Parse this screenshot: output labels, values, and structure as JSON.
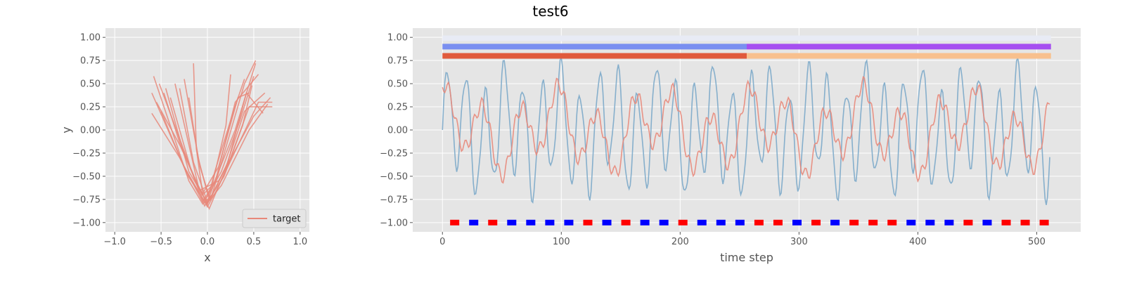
{
  "figure": {
    "suptitle": "test6"
  },
  "chart_data": [
    {
      "type": "line",
      "panel": "left",
      "xlabel": "x",
      "ylabel": "y",
      "xlim": [
        -1.1,
        1.1
      ],
      "ylim": [
        -1.1,
        1.1
      ],
      "xticks": [
        -1.0,
        -0.5,
        0.0,
        0.5,
        1.0
      ],
      "yticks": [
        -1.0,
        -0.75,
        -0.5,
        -0.25,
        0.0,
        0.25,
        0.5,
        0.75,
        1.0
      ],
      "xtick_labels": [
        "−1.0",
        "−0.5",
        "0.0",
        "0.5",
        "1.0"
      ],
      "ytick_labels": [
        "−1.00",
        "−0.75",
        "−0.50",
        "−0.25",
        "0.00",
        "0.25",
        "0.50",
        "0.75",
        "1.00"
      ],
      "grid": true,
      "legend": {
        "placement": "lower-right",
        "entries": [
          "target"
        ]
      },
      "series": [
        {
          "name": "target",
          "color": "#e8887a",
          "strokes": [
            [
              [
                -0.58,
                0.58
              ],
              [
                -0.2,
                -0.55
              ],
              [
                -0.05,
                -0.8
              ],
              [
                0.05,
                -0.7
              ],
              [
                0.4,
                0.5
              ],
              [
                0.52,
                0.75
              ]
            ],
            [
              [
                -0.6,
                0.4
              ],
              [
                -0.25,
                -0.4
              ],
              [
                0.0,
                -0.83
              ],
              [
                0.1,
                -0.65
              ],
              [
                0.55,
                0.3
              ],
              [
                0.7,
                0.3
              ]
            ],
            [
              [
                -0.6,
                0.18
              ],
              [
                -0.3,
                -0.3
              ],
              [
                -0.05,
                -0.78
              ],
              [
                0.08,
                -0.55
              ],
              [
                0.3,
                0.0
              ],
              [
                0.52,
                0.72
              ]
            ],
            [
              [
                -0.52,
                0.5
              ],
              [
                -0.15,
                -0.5
              ],
              [
                0.0,
                -0.8
              ],
              [
                0.2,
                -0.4
              ],
              [
                0.4,
                0.2
              ],
              [
                0.62,
                0.4
              ]
            ],
            [
              [
                -0.45,
                0.45
              ],
              [
                -0.2,
                -0.45
              ],
              [
                -0.02,
                -0.75
              ],
              [
                0.15,
                -0.45
              ],
              [
                0.35,
                0.1
              ],
              [
                0.5,
                0.58
              ]
            ],
            [
              [
                -0.35,
                0.5
              ],
              [
                -0.1,
                -0.6
              ],
              [
                0.02,
                -0.85
              ],
              [
                0.25,
                -0.3
              ],
              [
                0.45,
                0.25
              ],
              [
                0.7,
                0.25
              ]
            ],
            [
              [
                -0.15,
                0.72
              ],
              [
                -0.12,
                -0.2
              ],
              [
                -0.05,
                -0.7
              ],
              [
                0.05,
                -0.6
              ],
              [
                0.2,
                0.05
              ],
              [
                0.25,
                0.6
              ]
            ],
            [
              [
                -0.3,
                0.45
              ],
              [
                -0.15,
                -0.35
              ],
              [
                0.0,
                -0.78
              ],
              [
                0.1,
                -0.5
              ],
              [
                0.3,
                0.3
              ],
              [
                0.55,
                0.6
              ]
            ],
            [
              [
                -0.55,
                0.3
              ],
              [
                -0.25,
                -0.25
              ],
              [
                -0.08,
                -0.65
              ],
              [
                0.12,
                -0.55
              ],
              [
                0.5,
                0.15
              ],
              [
                0.68,
                0.35
              ]
            ],
            [
              [
                -0.4,
                0.35
              ],
              [
                -0.18,
                -0.42
              ],
              [
                -0.03,
                -0.82
              ],
              [
                0.18,
                -0.5
              ],
              [
                0.38,
                0.05
              ],
              [
                0.48,
                0.48
              ]
            ],
            [
              [
                -0.25,
                0.55
              ],
              [
                -0.08,
                -0.4
              ],
              [
                0.03,
                -0.75
              ],
              [
                0.22,
                -0.35
              ],
              [
                0.42,
                0.4
              ],
              [
                0.6,
                0.18
              ]
            ],
            [
              [
                -0.5,
                0.2
              ],
              [
                -0.22,
                -0.48
              ],
              [
                -0.01,
                -0.8
              ],
              [
                0.15,
                -0.6
              ],
              [
                0.45,
                0.0
              ],
              [
                0.65,
                0.28
              ]
            ],
            [
              [
                -0.2,
                0.35
              ],
              [
                -0.1,
                -0.3
              ],
              [
                0.01,
                -0.72
              ],
              [
                0.08,
                -0.45
              ],
              [
                0.28,
                0.2
              ],
              [
                0.4,
                0.55
              ]
            ],
            [
              [
                -0.47,
                0.4
              ],
              [
                -0.28,
                -0.2
              ],
              [
                -0.06,
                -0.7
              ],
              [
                0.12,
                -0.4
              ],
              [
                0.33,
                0.35
              ],
              [
                0.45,
                0.4
              ]
            ]
          ]
        }
      ]
    },
    {
      "type": "line",
      "panel": "right",
      "xlabel": "time step",
      "ylabel": "",
      "xlim": [
        -25,
        537
      ],
      "ylim": [
        -1.1,
        1.1
      ],
      "xticks": [
        0,
        100,
        200,
        300,
        400,
        500
      ],
      "yticks": [
        -1.0,
        -0.75,
        -0.5,
        -0.25,
        0.0,
        0.25,
        0.5,
        0.75,
        1.0
      ],
      "xtick_labels": [
        "0",
        "100",
        "200",
        "300",
        "400",
        "500"
      ],
      "ytick_labels": [
        "−1.00",
        "−0.75",
        "−0.50",
        "−0.25",
        "0.00",
        "0.25",
        "0.50",
        "0.75",
        "1.00"
      ],
      "grid": true,
      "series": [
        {
          "color": "#7ba9c9",
          "period": 16,
          "n": 512,
          "amplitude": 0.55,
          "phase": 0.0
        },
        {
          "color": "#e8887a",
          "period": 32,
          "n": 512,
          "amplitude": 0.32,
          "phase": 1.2
        }
      ],
      "bands": [
        {
          "y": 0.99,
          "segments": [
            {
              "x": [
                0,
                512
              ],
              "color": "#e8ebf5"
            }
          ]
        },
        {
          "y": 0.9,
          "segments": [
            {
              "x": [
                0,
                256
              ],
              "color": "#7a8ff0"
            },
            {
              "x": [
                256,
                512
              ],
              "color": "#a64ff0"
            }
          ]
        },
        {
          "y": 0.8,
          "segments": [
            {
              "x": [
                0,
                256
              ],
              "color": "#e05a3c"
            },
            {
              "x": [
                256,
                512
              ],
              "color": "#f8c08e"
            }
          ]
        }
      ],
      "markers": {
        "y": -1.0,
        "x": [
          10,
          26,
          42,
          58,
          74,
          90,
          106,
          122,
          138,
          154,
          170,
          186,
          202,
          218,
          234,
          250,
          266,
          282,
          298,
          314,
          330,
          346,
          362,
          378,
          394,
          410,
          426,
          442,
          458,
          474,
          490,
          506
        ],
        "colors": [
          "red",
          "blue",
          "red",
          "blue",
          "blue",
          "blue",
          "blue",
          "red",
          "blue",
          "red",
          "blue",
          "blue",
          "red",
          "blue",
          "blue",
          "blue",
          "red",
          "red",
          "blue",
          "red",
          "blue",
          "red",
          "red",
          "red",
          "blue",
          "blue",
          "blue",
          "red",
          "blue",
          "red",
          "red",
          "red"
        ]
      }
    }
  ]
}
